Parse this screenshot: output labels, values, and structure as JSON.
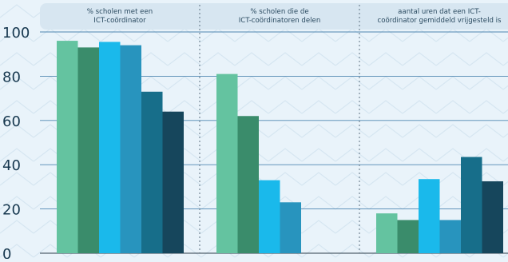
{
  "chart_data": {
    "type": "bar",
    "title": "",
    "xlabel": "",
    "ylabel": "",
    "ylim": [
      0,
      100
    ],
    "yticks": [
      "0",
      "20",
      "40",
      "60",
      "80",
      "100"
    ],
    "grid": true,
    "legend": "none",
    "groups": [
      {
        "label_lines": [
          "% scholen met een",
          "ICT-coördinator"
        ],
        "values": [
          96,
          93,
          95.5,
          94,
          73,
          64
        ]
      },
      {
        "label_lines": [
          "% scholen die de",
          "ICT-coördinatoren delen"
        ],
        "values": [
          81,
          62,
          33,
          23,
          0,
          0
        ]
      },
      {
        "label_lines": [
          "aantal uren dat een ICT-",
          "coördinator gemiddeld vrijgesteld is"
        ],
        "values": [
          18,
          15,
          33.5,
          15,
          43.5,
          32.5
        ]
      }
    ],
    "series_colors": [
      "#64c3a0",
      "#3a8c6b",
      "#1ab9eb",
      "#2894be",
      "#176e8a",
      "#16465c"
    ]
  }
}
